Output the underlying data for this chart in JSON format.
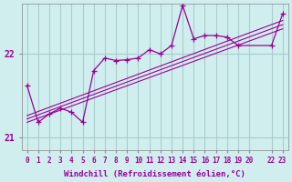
{
  "title": "",
  "xlabel": "Windchill (Refroidissement éolien,°C)",
  "ylabel": "",
  "bg_color": "#d0eeee",
  "grid_color": "#aacccc",
  "line_color": "#990099",
  "x_ticks": [
    0,
    1,
    2,
    3,
    4,
    5,
    6,
    7,
    8,
    9,
    10,
    11,
    12,
    13,
    14,
    15,
    16,
    17,
    18,
    19,
    20,
    22,
    23
  ],
  "x_tick_labels": [
    "0",
    "1",
    "2",
    "3",
    "4",
    "5",
    "6",
    "7",
    "8",
    "9",
    "10",
    "11",
    "12",
    "13",
    "14",
    "15",
    "16",
    "17",
    "18",
    "19",
    "20",
    "22",
    "23"
  ],
  "ylim": [
    20.85,
    22.6
  ],
  "xlim": [
    -0.5,
    23.5
  ],
  "yticks": [
    21,
    22
  ],
  "line1_x": [
    0,
    1,
    2,
    3,
    4,
    5,
    6,
    7,
    8,
    9,
    10,
    11,
    12,
    13,
    14,
    15,
    16,
    17,
    18,
    19,
    22,
    23
  ],
  "line1_y": [
    21.62,
    21.18,
    21.28,
    21.35,
    21.3,
    21.18,
    21.8,
    21.95,
    21.92,
    21.93,
    21.95,
    22.05,
    22.0,
    22.1,
    22.58,
    22.18,
    22.22,
    22.22,
    22.2,
    22.1,
    22.1,
    22.48
  ],
  "reg_line": [
    [
      0,
      23
    ],
    [
      21.22,
      22.35
    ]
  ],
  "reg_line2": [
    [
      0,
      23
    ],
    [
      21.18,
      22.3
    ]
  ],
  "reg_line3": [
    [
      0,
      23
    ],
    [
      21.26,
      22.4
    ]
  ]
}
